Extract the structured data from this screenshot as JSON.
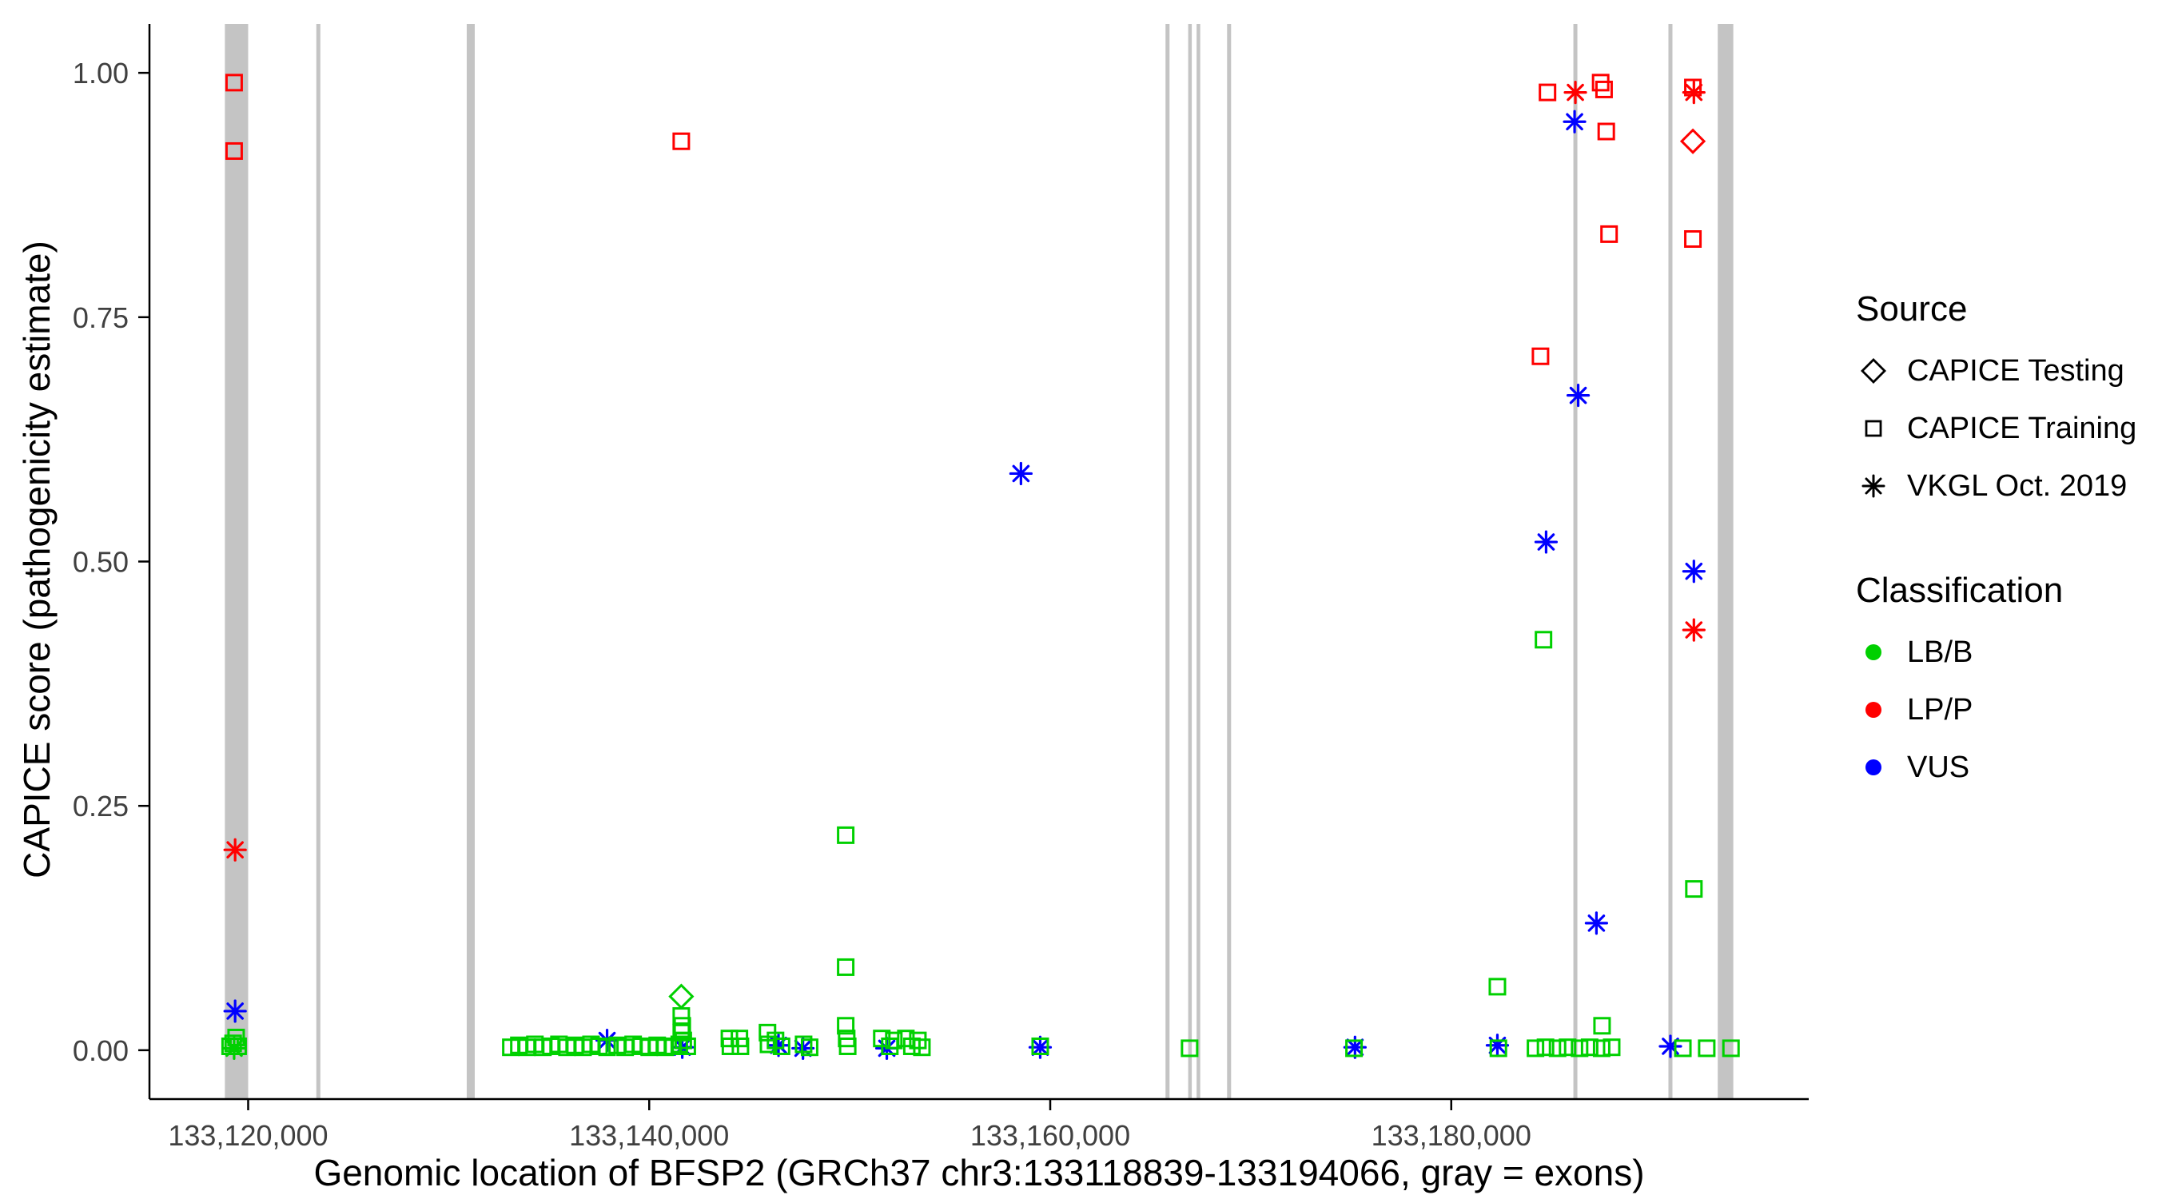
{
  "chart_data": {
    "type": "scatter",
    "title": "",
    "xlabel": "Genomic location of BFSP2 (GRCh37 chr3:133118839-133194066, gray = exons)",
    "ylabel": "CAPICE score (pathogenicity estimate)",
    "xlim": [
      133115078,
      133197827
    ],
    "ylim": [
      -0.05,
      1.05
    ],
    "grid": "off",
    "legend_position": "right",
    "x_ticks": [
      {
        "value": 133120000,
        "label": "133,120,000"
      },
      {
        "value": 133140000,
        "label": "133,140,000"
      },
      {
        "value": 133160000,
        "label": "133,160,000"
      },
      {
        "value": 133180000,
        "label": "133,180,000"
      }
    ],
    "y_ticks": [
      {
        "value": 0.0,
        "label": "0.00"
      },
      {
        "value": 0.25,
        "label": "0.25"
      },
      {
        "value": 0.5,
        "label": "0.50"
      },
      {
        "value": 0.75,
        "label": "0.75"
      },
      {
        "value": 1.0,
        "label": "1.00"
      }
    ],
    "exon_color": "#C4C4C4",
    "exons": [
      [
        133118839,
        133120000
      ],
      [
        133123400,
        133123600
      ],
      [
        133130900,
        133131300
      ],
      [
        133165750,
        133165950
      ],
      [
        133166880,
        133167060
      ],
      [
        133167300,
        133167480
      ],
      [
        133168820,
        133169020
      ],
      [
        133186090,
        133186290
      ],
      [
        133190830,
        133191030
      ],
      [
        133193290,
        133194066
      ]
    ],
    "colors": {
      "LB/B": "#00D000",
      "LP/P": "#FF0000",
      "VUS": "#0000FF"
    },
    "legend": {
      "source": {
        "title": "Source",
        "items": [
          {
            "key": "testing",
            "label": "CAPICE Testing",
            "shape": "diamond"
          },
          {
            "key": "training",
            "label": "CAPICE Training",
            "shape": "square"
          },
          {
            "key": "vkgl",
            "label": "VKGL Oct. 2019",
            "shape": "asterisk"
          }
        ]
      },
      "classification": {
        "title": "Classification",
        "items": [
          {
            "key": "LB/B",
            "label": "LB/B",
            "color": "#00D000"
          },
          {
            "key": "LP/P",
            "label": "LP/P",
            "color": "#FF0000"
          },
          {
            "key": "VUS",
            "label": "VUS",
            "color": "#0000FF"
          }
        ]
      }
    },
    "point_format": [
      "x",
      "y",
      "source",
      "classification"
    ],
    "points": [
      [
        133119300,
        0.99,
        "training",
        "LP/P"
      ],
      [
        133119300,
        0.92,
        "training",
        "LP/P"
      ],
      [
        133119350,
        0.205,
        "vkgl",
        "LP/P"
      ],
      [
        133141600,
        0.93,
        "training",
        "LP/P"
      ],
      [
        133184800,
        0.98,
        "training",
        "LP/P"
      ],
      [
        133184450,
        0.71,
        "training",
        "LP/P"
      ],
      [
        133186190,
        0.98,
        "vkgl",
        "LP/P"
      ],
      [
        133187450,
        0.99,
        "training",
        "LP/P"
      ],
      [
        133187620,
        0.983,
        "training",
        "LP/P"
      ],
      [
        133187730,
        0.94,
        "training",
        "LP/P"
      ],
      [
        133187870,
        0.835,
        "training",
        "LP/P"
      ],
      [
        133192050,
        0.985,
        "training",
        "LP/P"
      ],
      [
        133192100,
        0.98,
        "vkgl",
        "LP/P"
      ],
      [
        133192050,
        0.93,
        "testing",
        "LP/P"
      ],
      [
        133192050,
        0.83,
        "training",
        "LP/P"
      ],
      [
        133192100,
        0.43,
        "vkgl",
        "LP/P"
      ],
      [
        133119350,
        0.04,
        "vkgl",
        "VUS"
      ],
      [
        133137900,
        0.01,
        "vkgl",
        "VUS"
      ],
      [
        133141650,
        0.003,
        "vkgl",
        "VUS"
      ],
      [
        133146450,
        0.005,
        "vkgl",
        "VUS"
      ],
      [
        133147670,
        0.002,
        "vkgl",
        "VUS"
      ],
      [
        133151850,
        0.002,
        "vkgl",
        "VUS"
      ],
      [
        133158540,
        0.59,
        "vkgl",
        "VUS"
      ],
      [
        133159500,
        0.003,
        "vkgl",
        "VUS"
      ],
      [
        133175200,
        0.003,
        "vkgl",
        "VUS"
      ],
      [
        133182300,
        0.005,
        "vkgl",
        "VUS"
      ],
      [
        133186150,
        0.95,
        "vkgl",
        "VUS"
      ],
      [
        133186330,
        0.67,
        "vkgl",
        "VUS"
      ],
      [
        133184730,
        0.52,
        "vkgl",
        "VUS"
      ],
      [
        133187240,
        0.13,
        "vkgl",
        "VUS"
      ],
      [
        133190930,
        0.004,
        "vkgl",
        "VUS"
      ],
      [
        133192100,
        0.49,
        "vkgl",
        "VUS"
      ],
      [
        133119100,
        0.004,
        "training",
        "LB/B"
      ],
      [
        133119250,
        0.007,
        "training",
        "LB/B"
      ],
      [
        133119400,
        0.013,
        "training",
        "LB/B"
      ],
      [
        133119500,
        0.004,
        "training",
        "LB/B"
      ],
      [
        133119300,
        0.002,
        "vkgl",
        "LB/B"
      ],
      [
        133133100,
        0.003,
        "training",
        "LB/B"
      ],
      [
        133133500,
        0.005,
        "training",
        "LB/B"
      ],
      [
        133133900,
        0.003,
        "training",
        "LB/B"
      ],
      [
        133134300,
        0.006,
        "training",
        "LB/B"
      ],
      [
        133134700,
        0.003,
        "training",
        "LB/B"
      ],
      [
        133135100,
        0.004,
        "training",
        "LB/B"
      ],
      [
        133135500,
        0.006,
        "training",
        "LB/B"
      ],
      [
        133135900,
        0.003,
        "training",
        "LB/B"
      ],
      [
        133136300,
        0.005,
        "training",
        "LB/B"
      ],
      [
        133136700,
        0.003,
        "training",
        "LB/B"
      ],
      [
        133137100,
        0.006,
        "training",
        "LB/B"
      ],
      [
        133137500,
        0.004,
        "training",
        "LB/B"
      ],
      [
        133137900,
        0.003,
        "training",
        "LB/B"
      ],
      [
        133138400,
        0.005,
        "training",
        "LB/B"
      ],
      [
        133138800,
        0.003,
        "training",
        "LB/B"
      ],
      [
        133139200,
        0.006,
        "training",
        "LB/B"
      ],
      [
        133139600,
        0.004,
        "training",
        "LB/B"
      ],
      [
        133140000,
        0.003,
        "training",
        "LB/B"
      ],
      [
        133140400,
        0.005,
        "training",
        "LB/B"
      ],
      [
        133140800,
        0.003,
        "training",
        "LB/B"
      ],
      [
        133141200,
        0.004,
        "training",
        "LB/B"
      ],
      [
        133141500,
        0.006,
        "training",
        "LB/B"
      ],
      [
        133141600,
        0.055,
        "testing",
        "LB/B"
      ],
      [
        133141600,
        0.035,
        "training",
        "LB/B"
      ],
      [
        133141650,
        0.025,
        "training",
        "LB/B"
      ],
      [
        133141600,
        0.018,
        "training",
        "LB/B"
      ],
      [
        133141700,
        0.01,
        "training",
        "LB/B"
      ],
      [
        133141900,
        0.004,
        "training",
        "LB/B"
      ],
      [
        133144000,
        0.012,
        "training",
        "LB/B"
      ],
      [
        133144050,
        0.004,
        "training",
        "LB/B"
      ],
      [
        133144500,
        0.012,
        "training",
        "LB/B"
      ],
      [
        133144550,
        0.004,
        "training",
        "LB/B"
      ],
      [
        133145900,
        0.018,
        "training",
        "LB/B"
      ],
      [
        133145950,
        0.006,
        "training",
        "LB/B"
      ],
      [
        133146300,
        0.01,
        "training",
        "LB/B"
      ],
      [
        133146600,
        0.004,
        "training",
        "LB/B"
      ],
      [
        133147700,
        0.006,
        "training",
        "LB/B"
      ],
      [
        133148000,
        0.003,
        "training",
        "LB/B"
      ],
      [
        133149800,
        0.22,
        "training",
        "LB/B"
      ],
      [
        133149800,
        0.085,
        "training",
        "LB/B"
      ],
      [
        133149800,
        0.025,
        "training",
        "LB/B"
      ],
      [
        133149850,
        0.012,
        "training",
        "LB/B"
      ],
      [
        133149900,
        0.004,
        "training",
        "LB/B"
      ],
      [
        133151600,
        0.012,
        "training",
        "LB/B"
      ],
      [
        133152000,
        0.004,
        "training",
        "LB/B"
      ],
      [
        133152200,
        0.01,
        "training",
        "LB/B"
      ],
      [
        133152800,
        0.012,
        "training",
        "LB/B"
      ],
      [
        133153100,
        0.004,
        "training",
        "LB/B"
      ],
      [
        133153400,
        0.01,
        "training",
        "LB/B"
      ],
      [
        133153600,
        0.003,
        "training",
        "LB/B"
      ],
      [
        133159500,
        0.004,
        "training",
        "LB/B"
      ],
      [
        133166950,
        0.002,
        "training",
        "LB/B"
      ],
      [
        133175150,
        0.002,
        "training",
        "LB/B"
      ],
      [
        133182300,
        0.065,
        "training",
        "LB/B"
      ],
      [
        133182350,
        0.002,
        "training",
        "LB/B"
      ],
      [
        133184200,
        0.002,
        "training",
        "LB/B"
      ],
      [
        133184700,
        0.003,
        "training",
        "LB/B"
      ],
      [
        133185300,
        0.002,
        "training",
        "LB/B"
      ],
      [
        133185800,
        0.003,
        "training",
        "LB/B"
      ],
      [
        133186400,
        0.002,
        "training",
        "LB/B"
      ],
      [
        133186900,
        0.003,
        "training",
        "LB/B"
      ],
      [
        133187500,
        0.002,
        "training",
        "LB/B"
      ],
      [
        133188000,
        0.003,
        "training",
        "LB/B"
      ],
      [
        133184600,
        0.42,
        "training",
        "LB/B"
      ],
      [
        133187520,
        0.025,
        "training",
        "LB/B"
      ],
      [
        133191550,
        0.002,
        "training",
        "LB/B"
      ],
      [
        133192100,
        0.165,
        "training",
        "LB/B"
      ],
      [
        133192740,
        0.002,
        "training",
        "LB/B"
      ],
      [
        133193950,
        0.002,
        "training",
        "LB/B"
      ]
    ]
  }
}
